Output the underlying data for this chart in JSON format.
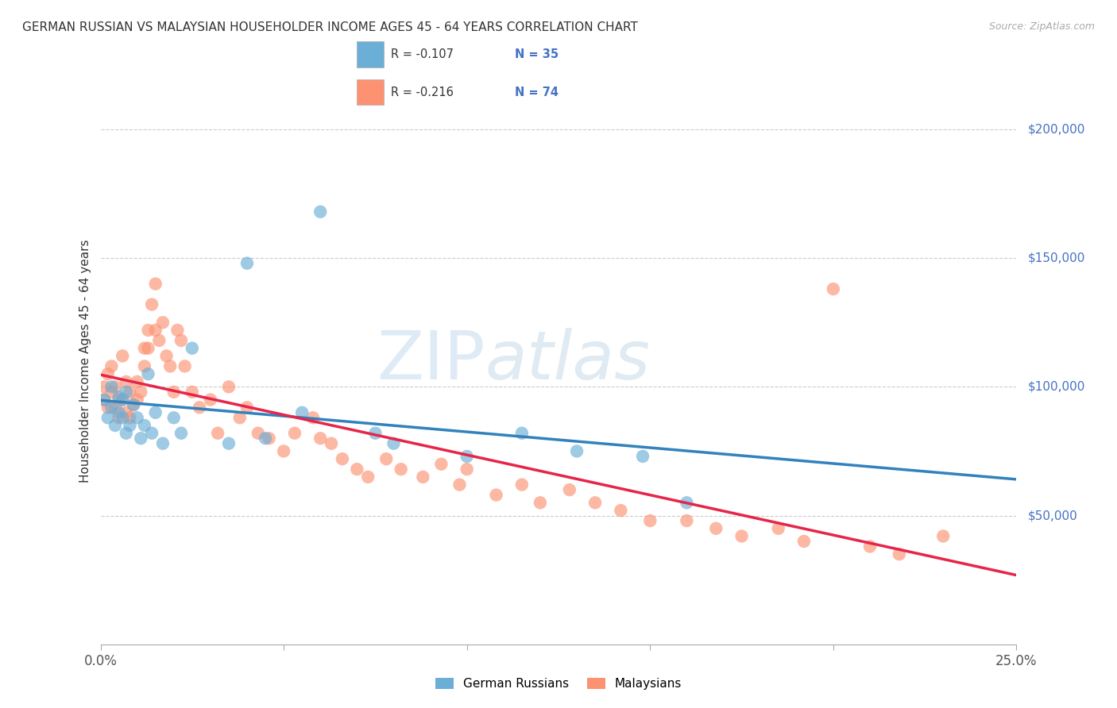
{
  "title": "GERMAN RUSSIAN VS MALAYSIAN HOUSEHOLDER INCOME AGES 45 - 64 YEARS CORRELATION CHART",
  "source": "Source: ZipAtlas.com",
  "ylabel": "Householder Income Ages 45 - 64 years",
  "ylabel_right_labels": [
    "$50,000",
    "$100,000",
    "$150,000",
    "$200,000"
  ],
  "ylabel_right_values": [
    50000,
    100000,
    150000,
    200000
  ],
  "xlim": [
    0.0,
    0.25
  ],
  "ylim": [
    0,
    220000
  ],
  "legend_blue_r": "R = -0.107",
  "legend_blue_n": "N = 35",
  "legend_pink_r": "R = -0.216",
  "legend_pink_n": "N = 74",
  "legend_label_blue": "German Russians",
  "legend_label_pink": "Malaysians",
  "color_blue": "#6baed6",
  "color_pink": "#fc9272",
  "color_blue_line": "#3182bd",
  "color_pink_line": "#e6254a",
  "watermark_zip": "ZIP",
  "watermark_atlas": "atlas",
  "blue_x": [
    0.001,
    0.002,
    0.003,
    0.003,
    0.004,
    0.005,
    0.005,
    0.006,
    0.006,
    0.007,
    0.007,
    0.008,
    0.009,
    0.01,
    0.011,
    0.012,
    0.013,
    0.014,
    0.015,
    0.017,
    0.02,
    0.022,
    0.025,
    0.035,
    0.04,
    0.045,
    0.055,
    0.06,
    0.075,
    0.08,
    0.1,
    0.115,
    0.13,
    0.148,
    0.16
  ],
  "blue_y": [
    95000,
    88000,
    92000,
    100000,
    85000,
    90000,
    96000,
    88000,
    95000,
    82000,
    98000,
    85000,
    93000,
    88000,
    80000,
    85000,
    105000,
    82000,
    90000,
    78000,
    88000,
    82000,
    115000,
    78000,
    148000,
    80000,
    90000,
    168000,
    82000,
    78000,
    73000,
    82000,
    75000,
    73000,
    55000
  ],
  "pink_x": [
    0.001,
    0.001,
    0.002,
    0.002,
    0.003,
    0.003,
    0.004,
    0.004,
    0.005,
    0.005,
    0.006,
    0.006,
    0.007,
    0.007,
    0.008,
    0.008,
    0.009,
    0.01,
    0.01,
    0.011,
    0.012,
    0.012,
    0.013,
    0.013,
    0.014,
    0.015,
    0.015,
    0.016,
    0.017,
    0.018,
    0.019,
    0.02,
    0.021,
    0.022,
    0.023,
    0.025,
    0.027,
    0.03,
    0.032,
    0.035,
    0.038,
    0.04,
    0.043,
    0.046,
    0.05,
    0.053,
    0.058,
    0.06,
    0.063,
    0.066,
    0.07,
    0.073,
    0.078,
    0.082,
    0.088,
    0.093,
    0.098,
    0.1,
    0.108,
    0.115,
    0.12,
    0.128,
    0.135,
    0.142,
    0.15,
    0.16,
    0.168,
    0.175,
    0.185,
    0.192,
    0.2,
    0.21,
    0.218,
    0.23
  ],
  "pink_y": [
    100000,
    95000,
    105000,
    92000,
    108000,
    98000,
    100000,
    92000,
    95000,
    88000,
    112000,
    95000,
    102000,
    90000,
    98000,
    88000,
    93000,
    102000,
    95000,
    98000,
    115000,
    108000,
    122000,
    115000,
    132000,
    140000,
    122000,
    118000,
    125000,
    112000,
    108000,
    98000,
    122000,
    118000,
    108000,
    98000,
    92000,
    95000,
    82000,
    100000,
    88000,
    92000,
    82000,
    80000,
    75000,
    82000,
    88000,
    80000,
    78000,
    72000,
    68000,
    65000,
    72000,
    68000,
    65000,
    70000,
    62000,
    68000,
    58000,
    62000,
    55000,
    60000,
    55000,
    52000,
    48000,
    48000,
    45000,
    42000,
    45000,
    40000,
    138000,
    38000,
    35000,
    42000
  ]
}
